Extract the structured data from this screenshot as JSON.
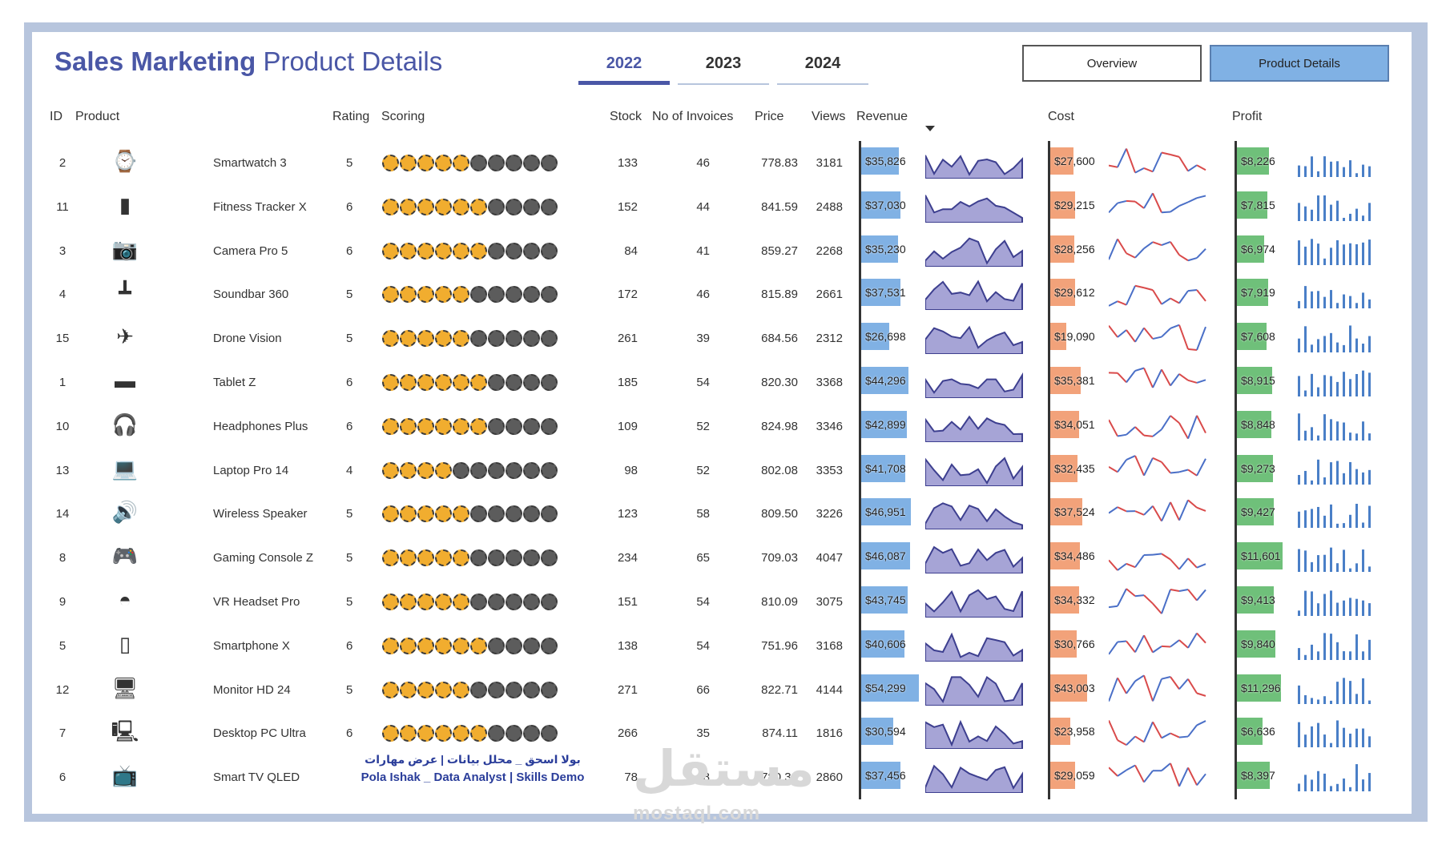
{
  "header": {
    "title_bold": "Sales Marketing",
    "title_rest": "Product Details",
    "years": [
      "2022",
      "2023",
      "2024"
    ],
    "active_year": "2022",
    "buttons": {
      "overview": "Overview",
      "product_details": "Product Details"
    }
  },
  "columns": {
    "id": "ID",
    "product": "Product",
    "rating": "Rating",
    "scoring": "Scoring",
    "stock": "Stock",
    "invoices": "No of Invoices",
    "price": "Price",
    "views": "Views",
    "revenue": "Revenue",
    "cost": "Cost",
    "profit": "Profit"
  },
  "colors": {
    "title": "#4a57a6",
    "revenue_bar": "#80b1e4",
    "cost_bar": "#f2a27a",
    "profit_bar": "#6fc07a",
    "revenue_area": "#a6a4d6",
    "revenue_line": "#3d3f8f",
    "cost_line_up": "#4a6fc7",
    "cost_line_down": "#d94a4a",
    "profit_column": "#4a7fc7",
    "star_on": "#f1ad2f",
    "star_off": "#5c5c5c"
  },
  "rows": [
    {
      "id": "2",
      "product": "Smartwatch 3",
      "icon": "smartwatch-icon",
      "rating": 5,
      "stock": "133",
      "invoices": "46",
      "price": "778.83",
      "views": "3181",
      "revenue": "$35,826",
      "revenue_value": 35826,
      "cost": "$27,600",
      "cost_value": 27600,
      "profit": "$8,226",
      "profit_value": 8226
    },
    {
      "id": "11",
      "product": "Fitness Tracker X",
      "icon": "fitness-tracker-icon",
      "rating": 6,
      "stock": "152",
      "invoices": "44",
      "price": "841.59",
      "views": "2488",
      "revenue": "$37,030",
      "revenue_value": 37030,
      "cost": "$29,215",
      "cost_value": 29215,
      "profit": "$7,815",
      "profit_value": 7815
    },
    {
      "id": "3",
      "product": "Camera Pro 5",
      "icon": "camera-icon",
      "rating": 6,
      "stock": "84",
      "invoices": "41",
      "price": "859.27",
      "views": "2268",
      "revenue": "$35,230",
      "revenue_value": 35230,
      "cost": "$28,256",
      "cost_value": 28256,
      "profit": "$6,974",
      "profit_value": 6974
    },
    {
      "id": "4",
      "product": "Soundbar 360",
      "icon": "soundbar-icon",
      "rating": 5,
      "stock": "172",
      "invoices": "46",
      "price": "815.89",
      "views": "2661",
      "revenue": "$37,531",
      "revenue_value": 37531,
      "cost": "$29,612",
      "cost_value": 29612,
      "profit": "$7,919",
      "profit_value": 7919
    },
    {
      "id": "15",
      "product": "Drone Vision",
      "icon": "drone-icon",
      "rating": 5,
      "stock": "261",
      "invoices": "39",
      "price": "684.56",
      "views": "2312",
      "revenue": "$26,698",
      "revenue_value": 26698,
      "cost": "$19,090",
      "cost_value": 19090,
      "profit": "$7,608",
      "profit_value": 7608
    },
    {
      "id": "1",
      "product": "Tablet Z",
      "icon": "tablet-icon",
      "rating": 6,
      "stock": "185",
      "invoices": "54",
      "price": "820.30",
      "views": "3368",
      "revenue": "$44,296",
      "revenue_value": 44296,
      "cost": "$35,381",
      "cost_value": 35381,
      "profit": "$8,915",
      "profit_value": 8915
    },
    {
      "id": "10",
      "product": "Headphones Plus",
      "icon": "headphones-icon",
      "rating": 6,
      "stock": "109",
      "invoices": "52",
      "price": "824.98",
      "views": "3346",
      "revenue": "$42,899",
      "revenue_value": 42899,
      "cost": "$34,051",
      "cost_value": 34051,
      "profit": "$8,848",
      "profit_value": 8848
    },
    {
      "id": "13",
      "product": "Laptop Pro 14",
      "icon": "laptop-icon",
      "rating": 4,
      "stock": "98",
      "invoices": "52",
      "price": "802.08",
      "views": "3353",
      "revenue": "$41,708",
      "revenue_value": 41708,
      "cost": "$32,435",
      "cost_value": 32435,
      "profit": "$9,273",
      "profit_value": 9273
    },
    {
      "id": "14",
      "product": "Wireless Speaker",
      "icon": "speaker-icon",
      "rating": 5,
      "stock": "123",
      "invoices": "58",
      "price": "809.50",
      "views": "3226",
      "revenue": "$46,951",
      "revenue_value": 46951,
      "cost": "$37,524",
      "cost_value": 37524,
      "profit": "$9,427",
      "profit_value": 9427
    },
    {
      "id": "8",
      "product": "Gaming Console Z",
      "icon": "gaming-console-icon",
      "rating": 5,
      "stock": "234",
      "invoices": "65",
      "price": "709.03",
      "views": "4047",
      "revenue": "$46,087",
      "revenue_value": 46087,
      "cost": "$34,486",
      "cost_value": 34486,
      "profit": "$11,601",
      "profit_value": 11601
    },
    {
      "id": "9",
      "product": "VR Headset Pro",
      "icon": "vr-headset-icon",
      "rating": 5,
      "stock": "151",
      "invoices": "54",
      "price": "810.09",
      "views": "3075",
      "revenue": "$43,745",
      "revenue_value": 43745,
      "cost": "$34,332",
      "cost_value": 34332,
      "profit": "$9,413",
      "profit_value": 9413
    },
    {
      "id": "5",
      "product": "Smartphone X",
      "icon": "smartphone-icon",
      "rating": 6,
      "stock": "138",
      "invoices": "54",
      "price": "751.96",
      "views": "3168",
      "revenue": "$40,606",
      "revenue_value": 40606,
      "cost": "$30,766",
      "cost_value": 30766,
      "profit": "$9,840",
      "profit_value": 9840
    },
    {
      "id": "12",
      "product": "Monitor HD 24",
      "icon": "monitor-icon",
      "rating": 5,
      "stock": "271",
      "invoices": "66",
      "price": "822.71",
      "views": "4144",
      "revenue": "$54,299",
      "revenue_value": 54299,
      "cost": "$43,003",
      "cost_value": 43003,
      "profit": "$11,296",
      "profit_value": 11296
    },
    {
      "id": "7",
      "product": "Desktop PC Ultra",
      "icon": "desktop-pc-icon",
      "rating": 6,
      "stock": "266",
      "invoices": "35",
      "price": "874.11",
      "views": "1816",
      "revenue": "$30,594",
      "revenue_value": 30594,
      "cost": "$23,958",
      "cost_value": 23958,
      "profit": "$6,636",
      "profit_value": 6636
    },
    {
      "id": "6",
      "product": "Smart TV QLED",
      "icon": "smart-tv-icon",
      "rating": null,
      "stock": "78",
      "invoices": "48",
      "price": "780.33",
      "views": "2860",
      "revenue": "$37,456",
      "revenue_value": 37456,
      "cost": "$29,059",
      "cost_value": 29059,
      "profit": "$8,397",
      "profit_value": 8397
    }
  ],
  "footer": {
    "arabic": "بولا اسحق _ محلل بيانات | عرض مهارات",
    "english": "Pola Ishak _ Data Analyst | Skills Demo"
  },
  "watermark": {
    "arabic": "مستقل",
    "latin": "mostaql.com"
  }
}
